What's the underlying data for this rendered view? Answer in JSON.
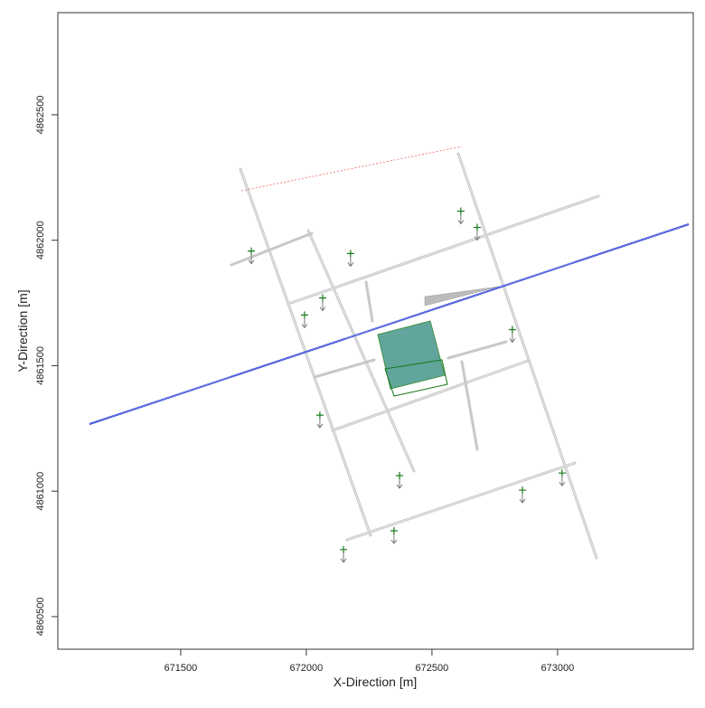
{
  "chart_data": {
    "type": "scatter",
    "x_label": "X-Direction [m]",
    "y_label": "Y-Direction [m]",
    "xlim": [
      671011,
      673540
    ],
    "ylim": [
      4860370,
      4862907
    ],
    "xticks": [
      671500,
      672000,
      672500,
      673000
    ],
    "yticks": [
      4860500,
      4861000,
      4861500,
      4862000,
      4862500
    ],
    "color": "#1a7a1a",
    "x": [
      671781,
      672176,
      672065,
      671993,
      672615,
      672680,
      672820,
      672054,
      672371,
      672860,
      673018,
      672349,
      672148
    ],
    "y": [
      4861957,
      4861947,
      4861770,
      4861702,
      4862116,
      4862051,
      4861644,
      4861303,
      4861062,
      4861004,
      4861072,
      4860842,
      4860767
    ]
  }
}
